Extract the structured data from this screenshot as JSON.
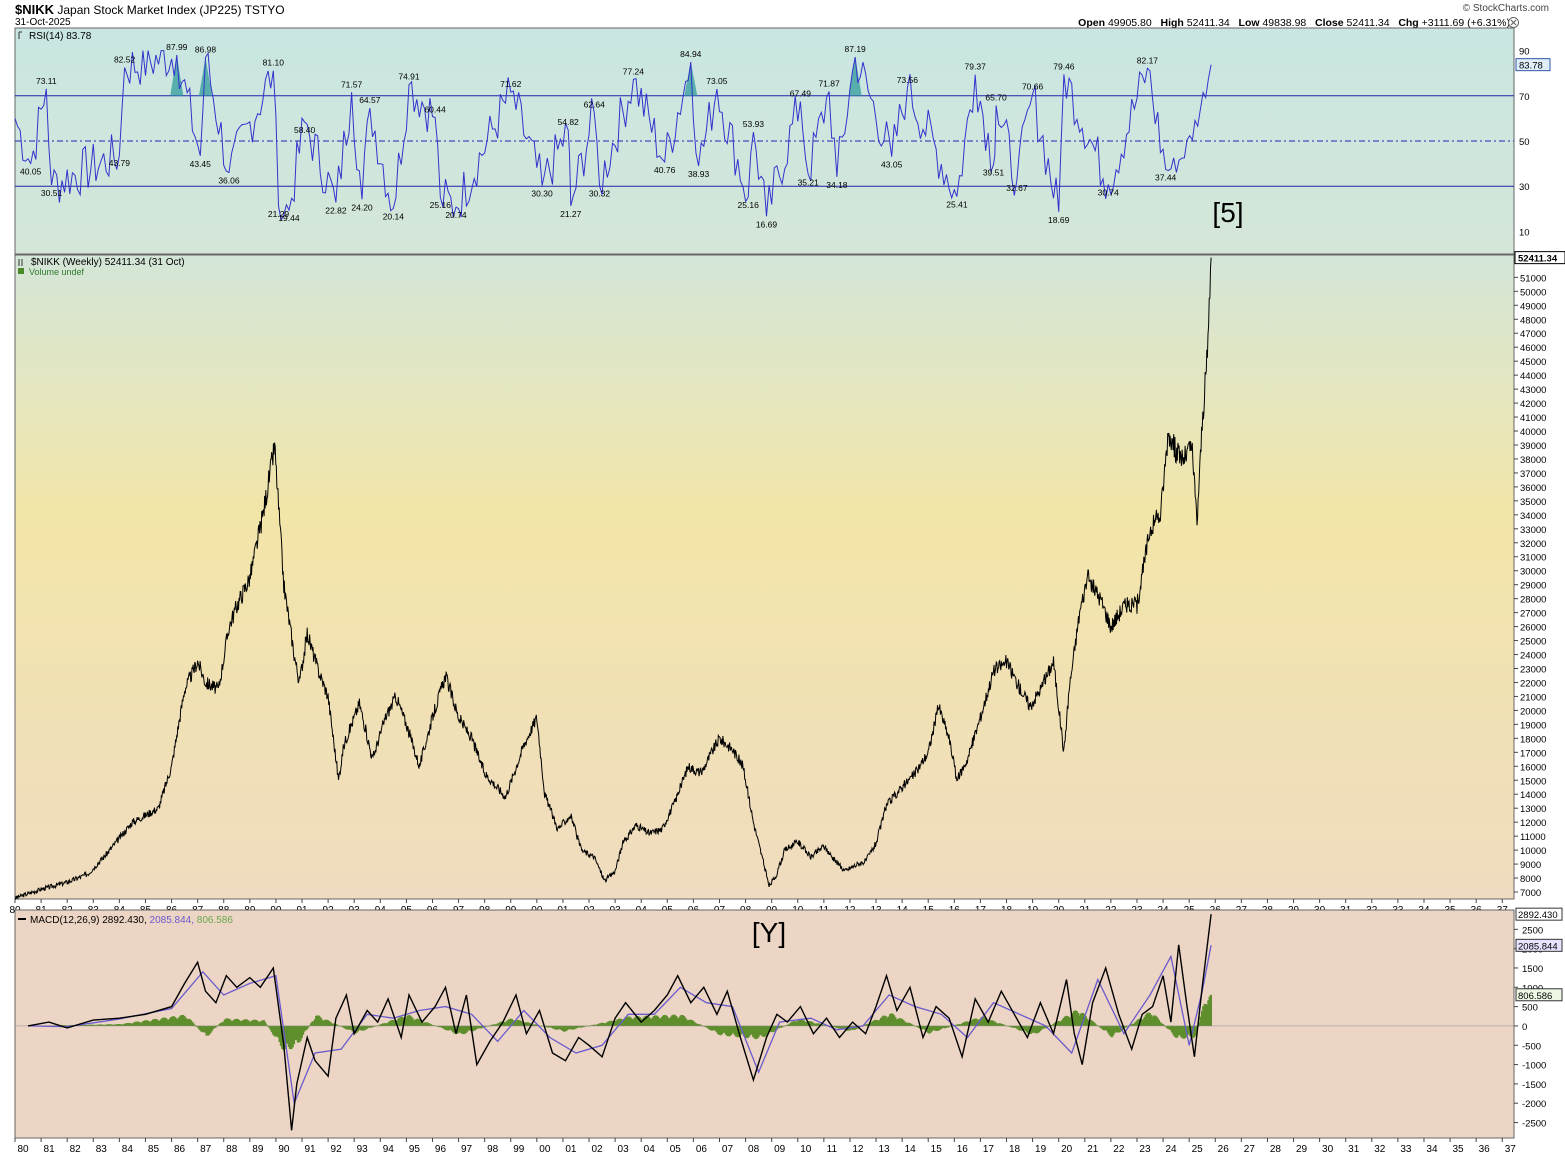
{
  "header": {
    "symbol": "$NIKK",
    "name": "Japan Stock Market Index (JP225)",
    "exchange": "TSTYO",
    "date": "31-Oct-2025",
    "brand": "© StockCharts.com",
    "open_label": "Open",
    "open": "49905.80",
    "high_label": "High",
    "high": "52411.34",
    "low_label": "Low",
    "low": "49838.98",
    "close_label": "Close",
    "close": "52411.34",
    "chg_label": "Chg",
    "chg": "+3111.69 (+6.31%)"
  },
  "annotations": {
    "wave_top": "[5]",
    "wave_bottom": "[Y]"
  },
  "colors": {
    "rsi_bg": "#c9e6e2",
    "price_bg_top": "#d4e6d8",
    "price_bg_mid": "#f2e5a8",
    "price_bg_bottom": "#efdcc0",
    "macd_bg": "#ecd5c4",
    "rsi_line": "#3333cc",
    "macd_line": "#000000",
    "signal_line": "#6a5acd",
    "histogram": "#5e8f2c",
    "price": "#000000"
  },
  "chart_data": [
    {
      "type": "line",
      "panel": "RSI",
      "legend": "RSI(14) 83.78",
      "last_value": "83.78",
      "ylim": [
        0,
        100
      ],
      "y_ticks": [
        "10",
        "30",
        "50",
        "70",
        "90"
      ],
      "reference_lines": [
        30,
        50,
        70
      ],
      "peak_labels": [
        {
          "x": 1981.2,
          "y": 73.11,
          "label": "73.11"
        },
        {
          "x": 1984.2,
          "y": 82.52,
          "label": "82.52"
        },
        {
          "x": 1986.2,
          "y": 87.99,
          "label": "87.99"
        },
        {
          "x": 1987.3,
          "y": 86.98,
          "label": "86.98"
        },
        {
          "x": 1989.9,
          "y": 81.1,
          "label": "81.10"
        },
        {
          "x": 1992.9,
          "y": 71.57,
          "label": "71.57"
        },
        {
          "x": 1993.6,
          "y": 64.57,
          "label": "64.57"
        },
        {
          "x": 1995.1,
          "y": 74.91,
          "label": "74.91"
        },
        {
          "x": 1996.1,
          "y": 60.44,
          "label": "60.44"
        },
        {
          "x": 1999.0,
          "y": 71.62,
          "label": "71.62"
        },
        {
          "x": 2001.2,
          "y": 54.82,
          "label": "54.82"
        },
        {
          "x": 2002.2,
          "y": 62.64,
          "label": "62.64"
        },
        {
          "x": 2003.7,
          "y": 77.24,
          "label": "77.24"
        },
        {
          "x": 2005.9,
          "y": 84.94,
          "label": "84.94"
        },
        {
          "x": 2006.9,
          "y": 73.05,
          "label": "73.05"
        },
        {
          "x": 2008.3,
          "y": 53.93,
          "label": "53.93"
        },
        {
          "x": 2010.1,
          "y": 67.49,
          "label": "67.49"
        },
        {
          "x": 2011.2,
          "y": 71.87,
          "label": "71.87"
        },
        {
          "x": 2012.2,
          "y": 87.19,
          "label": "87.19"
        },
        {
          "x": 2014.2,
          "y": 73.56,
          "label": "73.56"
        },
        {
          "x": 2016.8,
          "y": 79.37,
          "label": "79.37"
        },
        {
          "x": 2017.6,
          "y": 65.7,
          "label": "65.70"
        },
        {
          "x": 2019.0,
          "y": 70.66,
          "label": "70.66"
        },
        {
          "x": 2020.2,
          "y": 79.46,
          "label": "79.46"
        },
        {
          "x": 2023.4,
          "y": 82.17,
          "label": "82.17"
        }
      ],
      "trough_labels": [
        {
          "x": 1980.6,
          "y": 40.05,
          "label": "40.05"
        },
        {
          "x": 1981.4,
          "y": 30.51,
          "label": "30.51"
        },
        {
          "x": 1984.0,
          "y": 43.79,
          "label": "43.79"
        },
        {
          "x": 1987.1,
          "y": 43.45,
          "label": "43.45"
        },
        {
          "x": 1988.2,
          "y": 36.06,
          "label": "36.06"
        },
        {
          "x": 1990.1,
          "y": 21.29,
          "label": "21.29"
        },
        {
          "x": 1990.5,
          "y": 19.44,
          "label": "19.44"
        },
        {
          "x": 1991.1,
          "y": 58.4,
          "label": "58.40"
        },
        {
          "x": 1992.3,
          "y": 22.82,
          "label": "22.82"
        },
        {
          "x": 1993.3,
          "y": 24.2,
          "label": "24.20"
        },
        {
          "x": 1994.5,
          "y": 20.14,
          "label": "20.14"
        },
        {
          "x": 1996.3,
          "y": 25.16,
          "label": "25.16"
        },
        {
          "x": 1996.9,
          "y": 20.74,
          "label": "20.74"
        },
        {
          "x": 2000.2,
          "y": 30.3,
          "label": "30.30"
        },
        {
          "x": 2001.3,
          "y": 21.27,
          "label": "21.27"
        },
        {
          "x": 2002.4,
          "y": 30.32,
          "label": "30.32"
        },
        {
          "x": 2004.9,
          "y": 40.76,
          "label": "40.76"
        },
        {
          "x": 2006.2,
          "y": 38.93,
          "label": "38.93"
        },
        {
          "x": 2008.1,
          "y": 25.16,
          "label": "25.16"
        },
        {
          "x": 2008.8,
          "y": 16.69,
          "label": "16.69"
        },
        {
          "x": 2010.4,
          "y": 35.21,
          "label": "35.21"
        },
        {
          "x": 2011.5,
          "y": 34.18,
          "label": "34.18"
        },
        {
          "x": 2013.6,
          "y": 43.05,
          "label": "43.05"
        },
        {
          "x": 2016.1,
          "y": 25.41,
          "label": "25.41"
        },
        {
          "x": 2017.5,
          "y": 39.51,
          "label": "39.51"
        },
        {
          "x": 2018.4,
          "y": 32.67,
          "label": "32.67"
        },
        {
          "x": 2020.0,
          "y": 18.69,
          "label": "18.69"
        },
        {
          "x": 2021.9,
          "y": 30.74,
          "label": "30.74"
        },
        {
          "x": 2024.1,
          "y": 37.44,
          "label": "37.44"
        }
      ]
    },
    {
      "type": "line",
      "panel": "Price",
      "legend": "$NIKK (Weekly) 52411.34 (31 Oct)",
      "legend2": "Volume undef",
      "last_value": "52411.34",
      "ylim": [
        6500,
        52600
      ],
      "y_ticks": [
        "7000",
        "8000",
        "9000",
        "10000",
        "11000",
        "12000",
        "13000",
        "14000",
        "15000",
        "16000",
        "17000",
        "18000",
        "19000",
        "20000",
        "21000",
        "22000",
        "23000",
        "24000",
        "25000",
        "26000",
        "27000",
        "28000",
        "29000",
        "30000",
        "31000",
        "32000",
        "33000",
        "34000",
        "35000",
        "36000",
        "37000",
        "38000",
        "39000",
        "40000",
        "41000",
        "42000",
        "43000",
        "44000",
        "45000",
        "46000",
        "47000",
        "48000",
        "49000",
        "50000",
        "51000"
      ],
      "x_ticks": [
        "80",
        "81",
        "82",
        "83",
        "84",
        "85",
        "86",
        "87",
        "88",
        "89",
        "90",
        "91",
        "92",
        "93",
        "94",
        "95",
        "96",
        "97",
        "98",
        "99",
        "00",
        "01",
        "02",
        "03",
        "04",
        "05",
        "06",
        "07",
        "08",
        "09",
        "10",
        "11",
        "12",
        "13",
        "14",
        "15",
        "16",
        "17",
        "18",
        "19",
        "20",
        "21",
        "22",
        "23",
        "24",
        "25",
        "26",
        "27",
        "28",
        "29",
        "30",
        "31",
        "32",
        "33",
        "34",
        "35",
        "36",
        "37"
      ],
      "x": [
        1980.0,
        1981.0,
        1982.0,
        1982.8,
        1983.5,
        1984.5,
        1985.5,
        1986.0,
        1986.5,
        1987.0,
        1987.3,
        1987.8,
        1988.2,
        1988.5,
        1989.0,
        1989.5,
        1989.95,
        1990.3,
        1990.7,
        1990.9,
        1991.2,
        1991.6,
        1992.0,
        1992.4,
        1992.6,
        1993.2,
        1993.7,
        1994.2,
        1994.6,
        1995.0,
        1995.5,
        1996.0,
        1996.5,
        1997.0,
        1997.5,
        1998.0,
        1998.8,
        1999.5,
        2000.0,
        2000.3,
        2000.8,
        2001.3,
        2001.7,
        2002.2,
        2002.6,
        2003.0,
        2003.3,
        2003.8,
        2004.3,
        2004.8,
        2005.3,
        2005.8,
        2006.3,
        2006.7,
        2007.0,
        2007.5,
        2007.9,
        2008.3,
        2008.7,
        2008.9,
        2009.2,
        2009.5,
        2010.0,
        2010.5,
        2011.0,
        2011.4,
        2011.8,
        2012.3,
        2012.6,
        2013.0,
        2013.4,
        2014.0,
        2014.5,
        2015.0,
        2015.4,
        2015.8,
        2016.1,
        2016.5,
        2017.0,
        2017.5,
        2018.0,
        2018.4,
        2018.9,
        2019.3,
        2019.8,
        2020.2,
        2020.4,
        2020.8,
        2021.1,
        2021.6,
        2022.0,
        2022.5,
        2023.0,
        2023.5,
        2023.9,
        2024.2,
        2024.5,
        2024.8,
        2025.1,
        2025.3,
        2025.5,
        2025.7,
        2025.84
      ],
      "close": [
        6570,
        7200,
        7700,
        8300,
        9700,
        12000,
        13000,
        16000,
        21500,
        23500,
        22000,
        21500,
        26000,
        27500,
        29500,
        34000,
        38900,
        29000,
        24000,
        22000,
        25500,
        23000,
        21000,
        15000,
        17500,
        20500,
        16500,
        19500,
        21000,
        19000,
        16000,
        19500,
        22500,
        19500,
        18000,
        15500,
        13800,
        17500,
        19500,
        14000,
        11500,
        12500,
        10000,
        9500,
        7800,
        8500,
        10500,
        11800,
        11200,
        11500,
        13500,
        16000,
        15500,
        17000,
        18000,
        17200,
        16000,
        12000,
        9000,
        7400,
        8300,
        10000,
        10600,
        9500,
        10300,
        9300,
        8500,
        9000,
        9200,
        10500,
        13200,
        14500,
        15500,
        17000,
        20300,
        18000,
        15000,
        16500,
        19500,
        22800,
        23500,
        22000,
        20300,
        21500,
        23500,
        17000,
        21500,
        27000,
        29500,
        28000,
        26000,
        27500,
        27500,
        33000,
        34000,
        40000,
        38500,
        38000,
        39000,
        33500,
        40500,
        45500,
        52411.34
      ]
    },
    {
      "type": "line",
      "panel": "MACD",
      "legend": "MACD(12,26,9)",
      "macd_value": "2892.430",
      "signal_value": "2085.844",
      "histogram_value": "806.586",
      "ylim": [
        -2900,
        3000
      ],
      "y_ticks": [
        "-2500",
        "-2000",
        "-1500",
        "-1000",
        "-500",
        "0",
        "500",
        "1000",
        "1500",
        "2000",
        "2500"
      ],
      "x_ticks": [
        "80",
        "81",
        "82",
        "83",
        "84",
        "85",
        "86",
        "87",
        "88",
        "89",
        "90",
        "91",
        "92",
        "93",
        "94",
        "95",
        "96",
        "97",
        "98",
        "99",
        "00",
        "01",
        "02",
        "03",
        "04",
        "05",
        "06",
        "07",
        "08",
        "09",
        "10",
        "11",
        "12",
        "13",
        "14",
        "15",
        "16",
        "17",
        "18",
        "19",
        "20",
        "21",
        "22",
        "23",
        "24",
        "25",
        "26",
        "27",
        "28",
        "29",
        "30",
        "31",
        "32",
        "33",
        "34",
        "35",
        "36",
        "37"
      ],
      "series": [
        {
          "name": "MACD",
          "x": [
            1980.5,
            1981.3,
            1982.0,
            1983.0,
            1984.0,
            1985.0,
            1986.0,
            1986.5,
            1987.0,
            1987.3,
            1987.7,
            1988.1,
            1988.5,
            1989.0,
            1989.4,
            1989.9,
            1990.3,
            1990.6,
            1990.8,
            1991.2,
            1991.5,
            1992.0,
            1992.3,
            1992.7,
            1993.0,
            1993.5,
            1993.9,
            1994.3,
            1994.8,
            1995.1,
            1995.6,
            1996.1,
            1996.5,
            1996.9,
            1997.3,
            1997.7,
            1998.2,
            1998.7,
            1999.2,
            1999.6,
            2000.1,
            2000.6,
            2001.1,
            2001.6,
            2002.0,
            2002.5,
            2003.0,
            2003.4,
            2004.0,
            2004.5,
            2005.0,
            2005.4,
            2005.9,
            2006.4,
            2006.9,
            2007.3,
            2007.8,
            2008.3,
            2008.8,
            2009.2,
            2009.6,
            2010.1,
            2010.6,
            2011.1,
            2011.6,
            2012.1,
            2012.6,
            2013.0,
            2013.4,
            2013.8,
            2014.3,
            2014.8,
            2015.3,
            2015.8,
            2016.3,
            2016.8,
            2017.3,
            2017.8,
            2018.3,
            2018.8,
            2019.3,
            2019.8,
            2020.3,
            2020.6,
            2020.9,
            2021.3,
            2021.8,
            2022.3,
            2022.8,
            2023.2,
            2023.6,
            2024.0,
            2024.3,
            2024.6,
            2024.9,
            2025.2,
            2025.5,
            2025.84
          ],
          "values": [
            0,
            100,
            -50,
            150,
            200,
            300,
            500,
            1100,
            1650,
            900,
            600,
            1300,
            1000,
            1250,
            1000,
            1500,
            -500,
            -2700,
            -1500,
            -300,
            -900,
            -1300,
            200,
            800,
            -200,
            400,
            100,
            700,
            -300,
            800,
            100,
            500,
            1000,
            -200,
            800,
            -1000,
            -400,
            100,
            800,
            -200,
            400,
            -700,
            -900,
            -300,
            -500,
            -800,
            200,
            600,
            100,
            400,
            800,
            1300,
            600,
            1000,
            300,
            900,
            -300,
            -1400,
            -300,
            300,
            100,
            500,
            -200,
            200,
            -300,
            100,
            -200,
            500,
            1300,
            400,
            1000,
            -300,
            500,
            200,
            -800,
            700,
            100,
            900,
            300,
            -300,
            600,
            -200,
            1200,
            -200,
            -1000,
            600,
            1500,
            300,
            -600,
            300,
            500,
            1300,
            100,
            2100,
            600,
            -800,
            1000,
            2892.43
          ]
        },
        {
          "name": "Signal",
          "x": [
            1980.5,
            1982.0,
            1984.0,
            1986.0,
            1987.2,
            1988.0,
            1989.0,
            1990.0,
            1990.7,
            1991.5,
            1992.5,
            1993.5,
            1994.5,
            1995.5,
            1996.5,
            1997.5,
            1998.5,
            1999.5,
            2000.5,
            2001.5,
            2002.5,
            2003.5,
            2004.5,
            2005.5,
            2006.5,
            2007.5,
            2008.5,
            2009.3,
            2010.5,
            2011.5,
            2012.5,
            2013.5,
            2014.5,
            2015.5,
            2016.5,
            2017.5,
            2018.5,
            2019.5,
            2020.5,
            2021.5,
            2022.5,
            2023.5,
            2024.3,
            2025.0,
            2025.5,
            2025.84
          ],
          "values": [
            0,
            -20,
            180,
            450,
            1400,
            800,
            1100,
            1300,
            -2000,
            -700,
            -600,
            300,
            200,
            400,
            500,
            300,
            -400,
            400,
            -300,
            -700,
            -500,
            300,
            300,
            1000,
            600,
            500,
            -1200,
            100,
            200,
            -100,
            0,
            800,
            500,
            300,
            -300,
            600,
            300,
            0,
            -700,
            1200,
            -200,
            800,
            1800,
            -500,
            900,
            2085.844
          ]
        },
        {
          "name": "Histogram",
          "x": [
            1980.5,
            1984.0,
            1986.5,
            1987.3,
            1988.0,
            1989.5,
            1990.3,
            1990.8,
            1991.5,
            1993.0,
            1995.0,
            1997.0,
            1999.0,
            2001.0,
            2003.5,
            2005.5,
            2007.0,
            2008.5,
            2010.0,
            2012.0,
            2013.5,
            2015.0,
            2017.0,
            2019.0,
            2020.7,
            2022.0,
            2023.5,
            2024.5,
            2025.2,
            2025.6,
            2025.84
          ],
          "values": [
            0,
            50,
            300,
            -300,
            200,
            150,
            -700,
            -500,
            300,
            -200,
            300,
            -250,
            200,
            -150,
            250,
            300,
            -250,
            -350,
            200,
            -150,
            350,
            -200,
            250,
            -250,
            450,
            -300,
            400,
            -350,
            -300,
            800,
            806.586
          ]
        }
      ]
    }
  ]
}
